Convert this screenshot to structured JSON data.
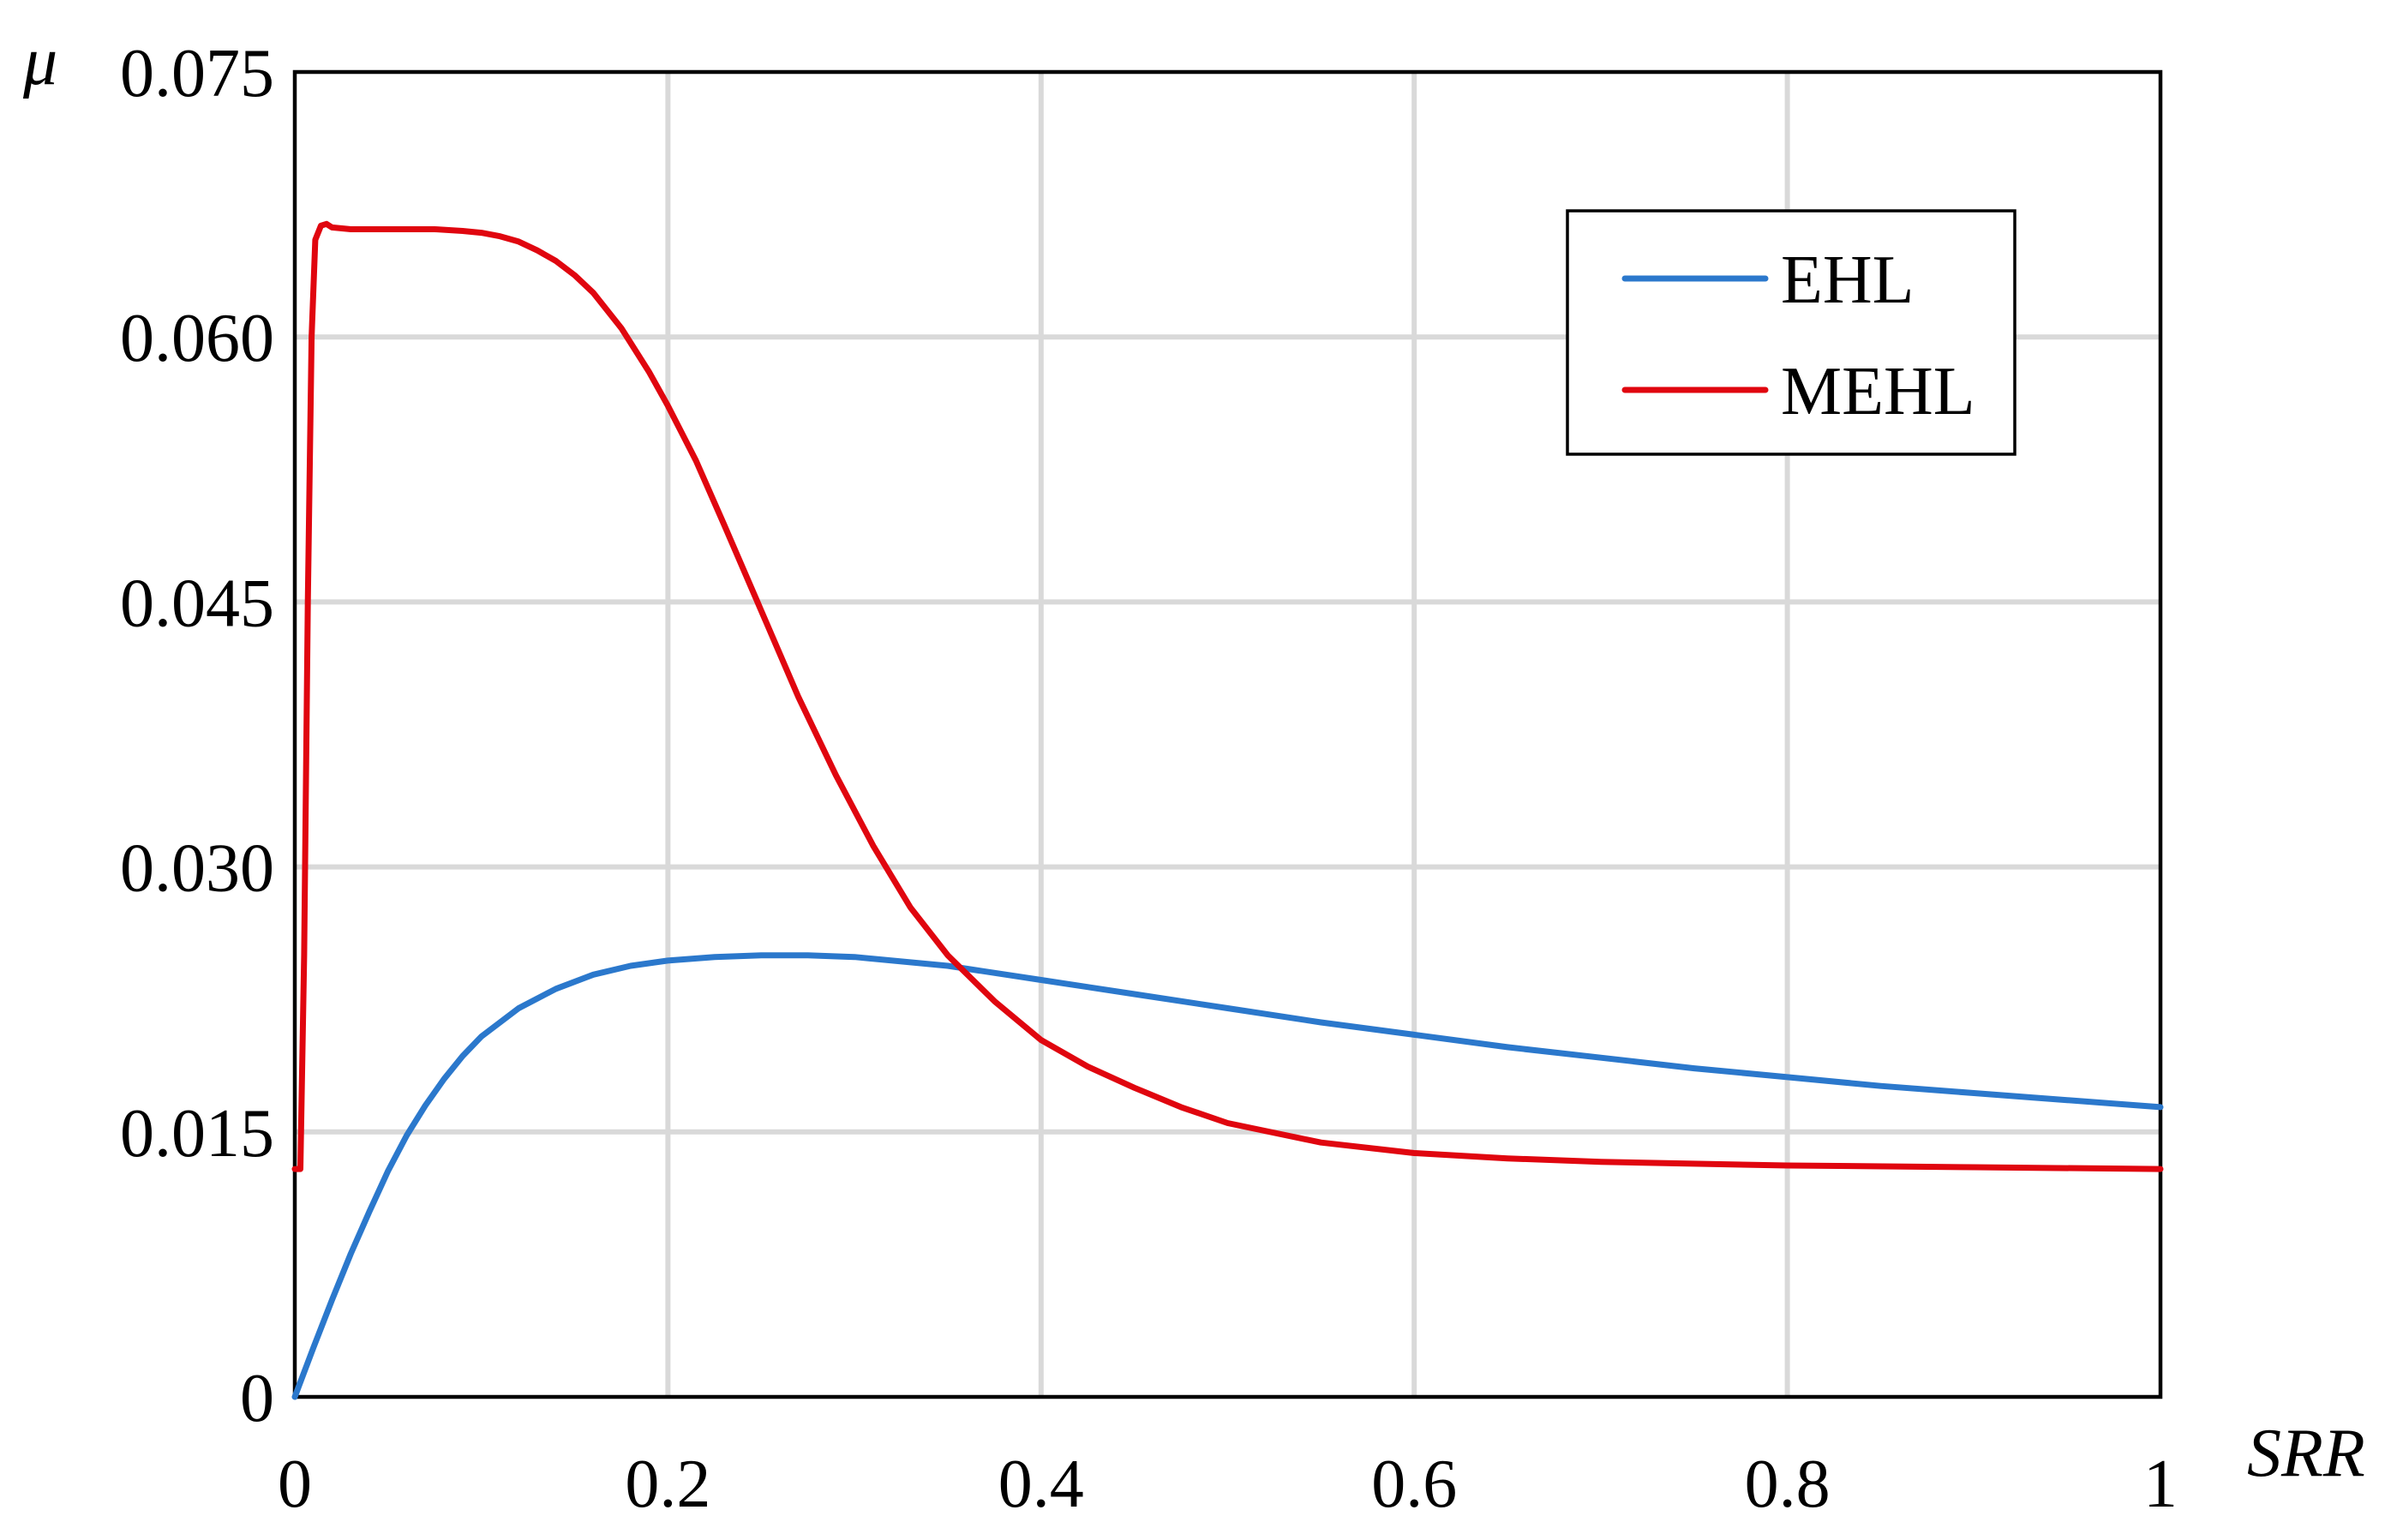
{
  "chart_data": {
    "type": "line",
    "xlabel": "SRR",
    "ylabel": "μ",
    "xlim": [
      0,
      1
    ],
    "ylim": [
      0,
      0.075
    ],
    "grid": true,
    "legend_position": "top-right",
    "x_ticks": [
      {
        "value": 0,
        "label": "0"
      },
      {
        "value": 0.2,
        "label": "0.2"
      },
      {
        "value": 0.4,
        "label": "0.4"
      },
      {
        "value": 0.6,
        "label": "0.6"
      },
      {
        "value": 0.8,
        "label": "0.8"
      },
      {
        "value": 1,
        "label": "1"
      }
    ],
    "y_ticks": [
      {
        "value": 0,
        "label": "0"
      },
      {
        "value": 0.015,
        "label": "0.015"
      },
      {
        "value": 0.03,
        "label": "0.030"
      },
      {
        "value": 0.045,
        "label": "0.045"
      },
      {
        "value": 0.06,
        "label": "0.060"
      },
      {
        "value": 0.075,
        "label": "0.075"
      }
    ],
    "series": [
      {
        "name": "EHL",
        "color": "#2b78cc",
        "points": [
          [
            0,
            0
          ],
          [
            0.01,
            0.0028
          ],
          [
            0.02,
            0.0055
          ],
          [
            0.03,
            0.0081
          ],
          [
            0.04,
            0.0105
          ],
          [
            0.05,
            0.0128
          ],
          [
            0.06,
            0.0148
          ],
          [
            0.07,
            0.0165
          ],
          [
            0.08,
            0.018
          ],
          [
            0.09,
            0.0193
          ],
          [
            0.1,
            0.0204
          ],
          [
            0.12,
            0.022
          ],
          [
            0.14,
            0.0231
          ],
          [
            0.16,
            0.0239
          ],
          [
            0.18,
            0.0244
          ],
          [
            0.2,
            0.0247
          ],
          [
            0.225,
            0.0249
          ],
          [
            0.25,
            0.025
          ],
          [
            0.275,
            0.025
          ],
          [
            0.3,
            0.0249
          ],
          [
            0.35,
            0.0244
          ],
          [
            0.4,
            0.0236
          ],
          [
            0.45,
            0.0228
          ],
          [
            0.5,
            0.022
          ],
          [
            0.55,
            0.0212
          ],
          [
            0.6,
            0.0205
          ],
          [
            0.65,
            0.0198
          ],
          [
            0.7,
            0.0192
          ],
          [
            0.75,
            0.0186
          ],
          [
            0.8,
            0.0181
          ],
          [
            0.85,
            0.0176
          ],
          [
            0.9,
            0.0172
          ],
          [
            0.95,
            0.0168
          ],
          [
            1.0,
            0.0164
          ]
        ]
      },
      {
        "name": "MEHL",
        "color": "#e0060f",
        "points": [
          [
            0,
            0.0129
          ],
          [
            0.003,
            0.0129
          ],
          [
            0.005,
            0.025
          ],
          [
            0.007,
            0.045
          ],
          [
            0.009,
            0.06
          ],
          [
            0.011,
            0.0655
          ],
          [
            0.014,
            0.0663
          ],
          [
            0.017,
            0.0664
          ],
          [
            0.02,
            0.0662
          ],
          [
            0.03,
            0.0661
          ],
          [
            0.05,
            0.0661
          ],
          [
            0.075,
            0.0661
          ],
          [
            0.09,
            0.066
          ],
          [
            0.1,
            0.0659
          ],
          [
            0.11,
            0.0657
          ],
          [
            0.12,
            0.0654
          ],
          [
            0.13,
            0.0649
          ],
          [
            0.14,
            0.0643
          ],
          [
            0.15,
            0.0635
          ],
          [
            0.16,
            0.0625
          ],
          [
            0.175,
            0.0605
          ],
          [
            0.19,
            0.058
          ],
          [
            0.2,
            0.0561
          ],
          [
            0.215,
            0.053
          ],
          [
            0.23,
            0.0494
          ],
          [
            0.25,
            0.0445
          ],
          [
            0.27,
            0.0396
          ],
          [
            0.29,
            0.0352
          ],
          [
            0.31,
            0.0312
          ],
          [
            0.33,
            0.0277
          ],
          [
            0.35,
            0.025
          ],
          [
            0.375,
            0.0224
          ],
          [
            0.4,
            0.0202
          ],
          [
            0.425,
            0.0187
          ],
          [
            0.45,
            0.0175
          ],
          [
            0.475,
            0.0164
          ],
          [
            0.5,
            0.0155
          ],
          [
            0.55,
            0.0144
          ],
          [
            0.6,
            0.0138
          ],
          [
            0.65,
            0.0135
          ],
          [
            0.7,
            0.0133
          ],
          [
            0.8,
            0.0131
          ],
          [
            0.9,
            0.013
          ],
          [
            1.0,
            0.0129
          ]
        ]
      }
    ]
  }
}
